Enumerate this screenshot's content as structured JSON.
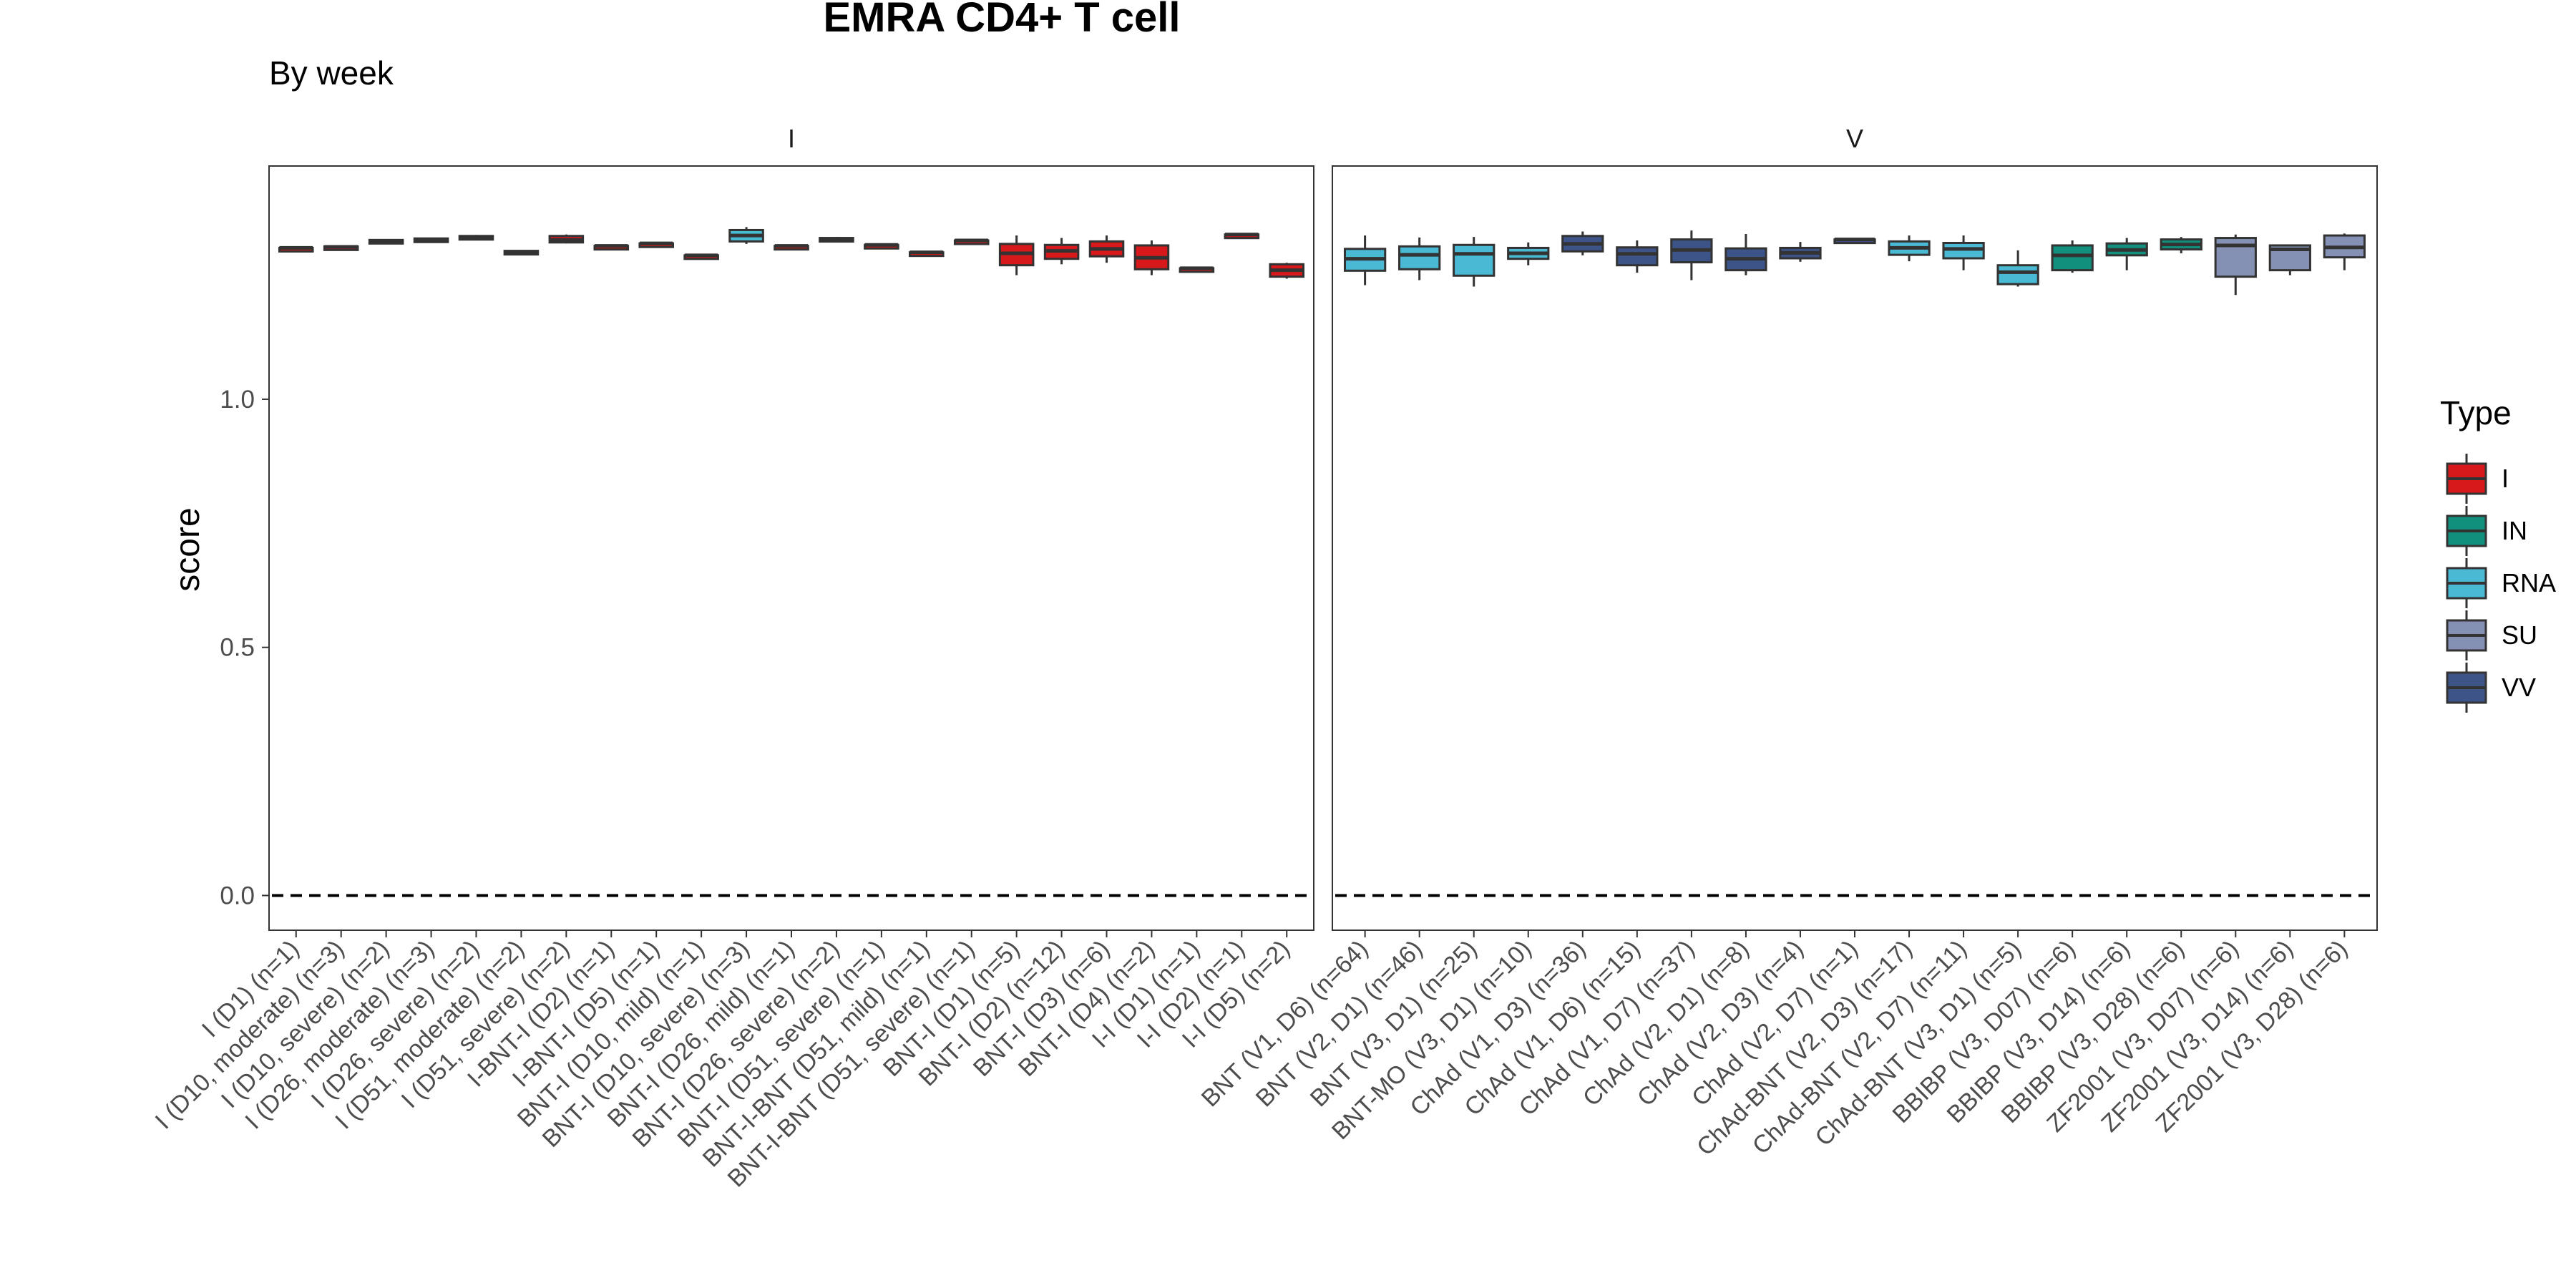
{
  "chart_data": {
    "type": "box",
    "title": "EMRA CD4+ T cell",
    "subtitle": "By week",
    "ylabel": "score",
    "xlabel": "",
    "ylim": [
      -0.07,
      1.47
    ],
    "yticks": [
      0.0,
      0.5,
      1.0
    ],
    "ytick_labels": [
      "0.0",
      "0.5",
      "1.0"
    ],
    "reference_line": 0.0,
    "grid": false,
    "legend": {
      "title": "Type",
      "position": "right",
      "items": [
        {
          "label": "I",
          "color": "#d7191c"
        },
        {
          "label": "IN",
          "color": "#11907e"
        },
        {
          "label": "RNA",
          "color": "#4ab9d3"
        },
        {
          "label": "SU",
          "color": "#8491b4"
        },
        {
          "label": "VV",
          "color": "#3c5488"
        }
      ]
    },
    "panels": [
      {
        "name": "I",
        "categories": [
          {
            "label": "I (D1) (n=1)",
            "type": "I",
            "q1": 1.305,
            "median": 1.305,
            "q3": 1.305,
            "min": 1.305,
            "max": 1.305
          },
          {
            "label": "I (D10, moderate) (n=3)",
            "type": "I",
            "q1": 1.306,
            "median": 1.307,
            "q3": 1.308,
            "min": 1.305,
            "max": 1.309
          },
          {
            "label": "I (D10, severe) (n=2)",
            "type": "I",
            "q1": 1.318,
            "median": 1.319,
            "q3": 1.321,
            "min": 1.317,
            "max": 1.322
          },
          {
            "label": "I (D26, moderate) (n=3)",
            "type": "I",
            "q1": 1.321,
            "median": 1.322,
            "q3": 1.324,
            "min": 1.319,
            "max": 1.325
          },
          {
            "label": "I (D26, severe) (n=2)",
            "type": "I",
            "q1": 1.325,
            "median": 1.327,
            "q3": 1.329,
            "min": 1.323,
            "max": 1.331
          },
          {
            "label": "I (D51, moderate) (n=2)",
            "type": "I",
            "q1": 1.295,
            "median": 1.297,
            "q3": 1.299,
            "min": 1.293,
            "max": 1.3
          },
          {
            "label": "I (D51, severe) (n=2)",
            "type": "I",
            "q1": 1.316,
            "median": 1.321,
            "q3": 1.329,
            "min": 1.314,
            "max": 1.332
          },
          {
            "label": "I-BNT-I (D2) (n=1)",
            "type": "I",
            "q1": 1.309,
            "median": 1.309,
            "q3": 1.309,
            "min": 1.309,
            "max": 1.309
          },
          {
            "label": "I-BNT-I (D5) (n=1)",
            "type": "I",
            "q1": 1.314,
            "median": 1.314,
            "q3": 1.314,
            "min": 1.314,
            "max": 1.314
          },
          {
            "label": "BNT-I (D10, mild) (n=1)",
            "type": "I",
            "q1": 1.29,
            "median": 1.29,
            "q3": 1.29,
            "min": 1.29,
            "max": 1.29
          },
          {
            "label": "BNT-I (D10, severe) (n=3)",
            "type": "RNA",
            "q1": 1.318,
            "median": 1.33,
            "q3": 1.341,
            "min": 1.313,
            "max": 1.347
          },
          {
            "label": "BNT-I (D26, mild) (n=1)",
            "type": "I",
            "q1": 1.309,
            "median": 1.309,
            "q3": 1.309,
            "min": 1.309,
            "max": 1.309
          },
          {
            "label": "BNT-I (D26, severe) (n=2)",
            "type": "I",
            "q1": 1.319,
            "median": 1.322,
            "q3": 1.325,
            "min": 1.317,
            "max": 1.327
          },
          {
            "label": "BNT-I (D51, severe) (n=1)",
            "type": "I",
            "q1": 1.311,
            "median": 1.311,
            "q3": 1.311,
            "min": 1.311,
            "max": 1.311
          },
          {
            "label": "BNT-I-BNT (D51, mild) (n=1)",
            "type": "I",
            "q1": 1.296,
            "median": 1.296,
            "q3": 1.296,
            "min": 1.296,
            "max": 1.296
          },
          {
            "label": "BNT-I-BNT (D51, severe) (n=1)",
            "type": "I",
            "q1": 1.32,
            "median": 1.32,
            "q3": 1.32,
            "min": 1.32,
            "max": 1.32
          },
          {
            "label": "BNT-I (D1) (n=5)",
            "type": "I",
            "q1": 1.27,
            "median": 1.294,
            "q3": 1.313,
            "min": 1.25,
            "max": 1.33
          },
          {
            "label": "BNT-I (D2) (n=12)",
            "type": "I",
            "q1": 1.283,
            "median": 1.299,
            "q3": 1.311,
            "min": 1.272,
            "max": 1.325
          },
          {
            "label": "BNT-I (D3) (n=6)",
            "type": "I",
            "q1": 1.288,
            "median": 1.303,
            "q3": 1.318,
            "min": 1.275,
            "max": 1.33
          },
          {
            "label": "BNT-I (D4) (n=2)",
            "type": "I",
            "q1": 1.262,
            "median": 1.285,
            "q3": 1.31,
            "min": 1.25,
            "max": 1.32
          },
          {
            "label": "I-I (D1) (n=1)",
            "type": "I",
            "q1": 1.264,
            "median": 1.264,
            "q3": 1.264,
            "min": 1.264,
            "max": 1.264
          },
          {
            "label": "I-I (D2) (n=1)",
            "type": "I",
            "q1": 1.332,
            "median": 1.332,
            "q3": 1.332,
            "min": 1.332,
            "max": 1.332
          },
          {
            "label": "I-I (D5) (n=2)",
            "type": "I",
            "q1": 1.247,
            "median": 1.26,
            "q3": 1.272,
            "min": 1.243,
            "max": 1.275
          }
        ]
      },
      {
        "name": "V",
        "categories": [
          {
            "label": "BNT (V1, D6) (n=64)",
            "type": "RNA",
            "q1": 1.259,
            "median": 1.283,
            "q3": 1.303,
            "min": 1.23,
            "max": 1.33
          },
          {
            "label": "BNT (V2, D1) (n=46)",
            "type": "RNA",
            "q1": 1.262,
            "median": 1.291,
            "q3": 1.308,
            "min": 1.24,
            "max": 1.326
          },
          {
            "label": "BNT (V3, D1) (n=25)",
            "type": "RNA",
            "q1": 1.249,
            "median": 1.293,
            "q3": 1.311,
            "min": 1.227,
            "max": 1.327
          },
          {
            "label": "BNT-MO (V3, D1) (n=10)",
            "type": "RNA",
            "q1": 1.283,
            "median": 1.294,
            "q3": 1.305,
            "min": 1.27,
            "max": 1.316
          },
          {
            "label": "ChAd (V1, D3) (n=36)",
            "type": "VV",
            "q1": 1.298,
            "median": 1.313,
            "q3": 1.329,
            "min": 1.29,
            "max": 1.338
          },
          {
            "label": "ChAd (V1, D6) (n=15)",
            "type": "VV",
            "q1": 1.27,
            "median": 1.293,
            "q3": 1.306,
            "min": 1.255,
            "max": 1.32
          },
          {
            "label": "ChAd (V1, D7) (n=37)",
            "type": "VV",
            "q1": 1.276,
            "median": 1.301,
            "q3": 1.322,
            "min": 1.24,
            "max": 1.34
          },
          {
            "label": "ChAd (V2, D1) (n=8)",
            "type": "VV",
            "q1": 1.26,
            "median": 1.283,
            "q3": 1.304,
            "min": 1.25,
            "max": 1.333
          },
          {
            "label": "ChAd (V2, D3) (n=4)",
            "type": "VV",
            "q1": 1.284,
            "median": 1.295,
            "q3": 1.305,
            "min": 1.277,
            "max": 1.317
          },
          {
            "label": "ChAd (V2, D7) (n=1)",
            "type": "VV",
            "q1": 1.322,
            "median": 1.322,
            "q3": 1.322,
            "min": 1.322,
            "max": 1.322
          },
          {
            "label": "ChAd-BNT (V2, D3) (n=17)",
            "type": "RNA",
            "q1": 1.291,
            "median": 1.305,
            "q3": 1.318,
            "min": 1.278,
            "max": 1.33
          },
          {
            "label": "ChAd-BNT (V2, D7) (n=11)",
            "type": "RNA",
            "q1": 1.284,
            "median": 1.303,
            "q3": 1.315,
            "min": 1.26,
            "max": 1.33
          },
          {
            "label": "ChAd-BNT (V3, D1) (n=5)",
            "type": "RNA",
            "q1": 1.232,
            "median": 1.256,
            "q3": 1.27,
            "min": 1.227,
            "max": 1.3
          },
          {
            "label": "BBIBP (V3, D07) (n=6)",
            "type": "IN",
            "q1": 1.26,
            "median": 1.29,
            "q3": 1.31,
            "min": 1.255,
            "max": 1.32
          },
          {
            "label": "BBIBP (V3, D14) (n=6)",
            "type": "IN",
            "q1": 1.29,
            "median": 1.301,
            "q3": 1.314,
            "min": 1.26,
            "max": 1.325
          },
          {
            "label": "BBIBP (V3, D28) (n=6)",
            "type": "IN",
            "q1": 1.302,
            "median": 1.312,
            "q3": 1.322,
            "min": 1.294,
            "max": 1.327
          },
          {
            "label": "ZF2001 (V3, D07) (n=6)",
            "type": "SU",
            "q1": 1.247,
            "median": 1.31,
            "q3": 1.325,
            "min": 1.21,
            "max": 1.332
          },
          {
            "label": "ZF2001 (V3, D14) (n=6)",
            "type": "SU",
            "q1": 1.26,
            "median": 1.302,
            "q3": 1.31,
            "min": 1.25,
            "max": 1.312
          },
          {
            "label": "ZF2001 (V3, D28) (n=6)",
            "type": "SU",
            "q1": 1.286,
            "median": 1.306,
            "q3": 1.33,
            "min": 1.26,
            "max": 1.334
          }
        ]
      }
    ]
  }
}
